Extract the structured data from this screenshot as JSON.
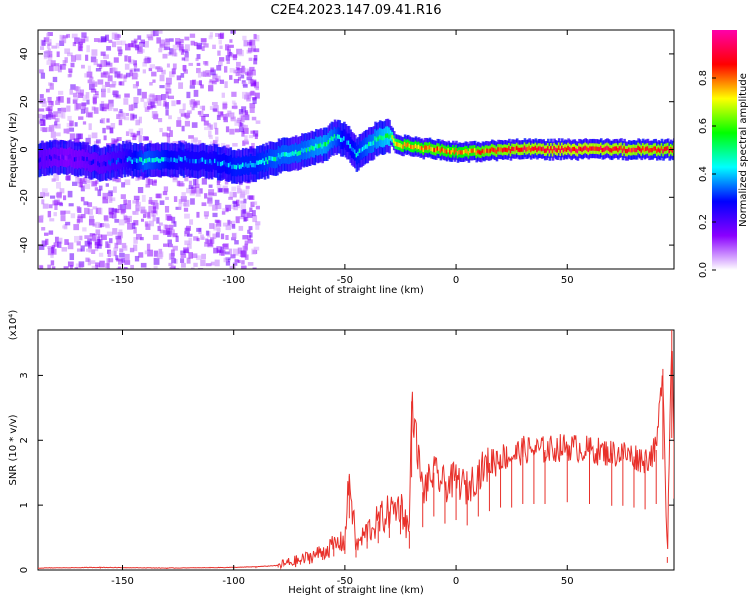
{
  "title": "C2E4.2023.147.09.41.R16",
  "chart_data": [
    {
      "type": "heatmap",
      "xlabel": "Height of straight line (km)",
      "ylabel": "Frequency (Hz)",
      "xlim": [
        -188,
        98
      ],
      "ylim": [
        -50,
        50
      ],
      "xticks": [
        -150,
        -100,
        -50,
        0,
        50
      ],
      "yticks": [
        -40,
        -20,
        0,
        20,
        40
      ],
      "colorbar": {
        "label": "Normalized spectral amplitude",
        "ticks": [
          0.0,
          0.2,
          0.4,
          0.6,
          0.8
        ],
        "range": [
          0,
          1
        ],
        "colormap": [
          "#ffffff",
          "#8a00ff",
          "#0000ff",
          "#00ffff",
          "#00ff00",
          "#ffff00",
          "#ff0000",
          "#ff00aa"
        ]
      },
      "ridge": {
        "x": [
          -188,
          -175,
          -160,
          -150,
          -140,
          -125,
          -110,
          -100,
          -90,
          -80,
          -70,
          -60,
          -55,
          -50,
          -45,
          -40,
          -35,
          -30,
          -28,
          -25,
          -20,
          -10,
          0,
          10,
          20,
          50,
          98
        ],
        "freq": [
          -4,
          -3,
          -6,
          -4,
          -5,
          -4,
          -5,
          -7,
          -6,
          -3,
          -1,
          2,
          5,
          4,
          -2,
          2,
          5,
          6,
          3,
          2,
          1,
          0,
          -1,
          -1,
          0,
          0,
          0
        ],
        "amplitude": [
          0.25,
          0.2,
          0.25,
          0.3,
          0.45,
          0.35,
          0.35,
          0.4,
          0.4,
          0.45,
          0.45,
          0.5,
          0.45,
          0.35,
          0.4,
          0.45,
          0.5,
          0.55,
          0.7,
          0.75,
          0.75,
          0.8,
          0.75,
          0.8,
          0.85,
          0.9,
          0.85
        ]
      },
      "scatter_region_x": [
        -188,
        -90
      ]
    },
    {
      "type": "line",
      "xlabel": "Height of straight line (km)",
      "ylabel": "SNR (10 * v/v)",
      "multiplier": "(x10⁴)",
      "xlim": [
        -188,
        98
      ],
      "ylim": [
        0,
        3.7
      ],
      "xticks": [
        -150,
        -100,
        -50,
        0,
        50
      ],
      "yticks": [
        0,
        1,
        2,
        3
      ],
      "series": [
        {
          "color": "#e8302a",
          "x": [
            -188,
            -160,
            -130,
            -100,
            -90,
            -80,
            -70,
            -60,
            -55,
            -50,
            -48,
            -45,
            -40,
            -35,
            -30,
            -25,
            -21,
            -20,
            -15,
            -10,
            -5,
            0,
            5,
            10,
            15,
            20,
            25,
            30,
            35,
            40,
            50,
            60,
            70,
            75,
            80,
            85,
            90,
            93,
            95,
            97,
            98
          ],
          "y": [
            0.03,
            0.04,
            0.03,
            0.04,
            0.05,
            0.07,
            0.15,
            0.28,
            0.38,
            0.45,
            1.45,
            0.35,
            0.6,
            0.75,
            0.9,
            1.0,
            0.6,
            2.6,
            1.2,
            1.5,
            1.3,
            1.4,
            1.25,
            1.5,
            1.65,
            1.75,
            1.75,
            1.85,
            1.85,
            1.85,
            1.9,
            1.85,
            1.8,
            1.8,
            1.75,
            1.7,
            1.85,
            3.1,
            0.2,
            3.7,
            2.0
          ]
        }
      ]
    }
  ]
}
